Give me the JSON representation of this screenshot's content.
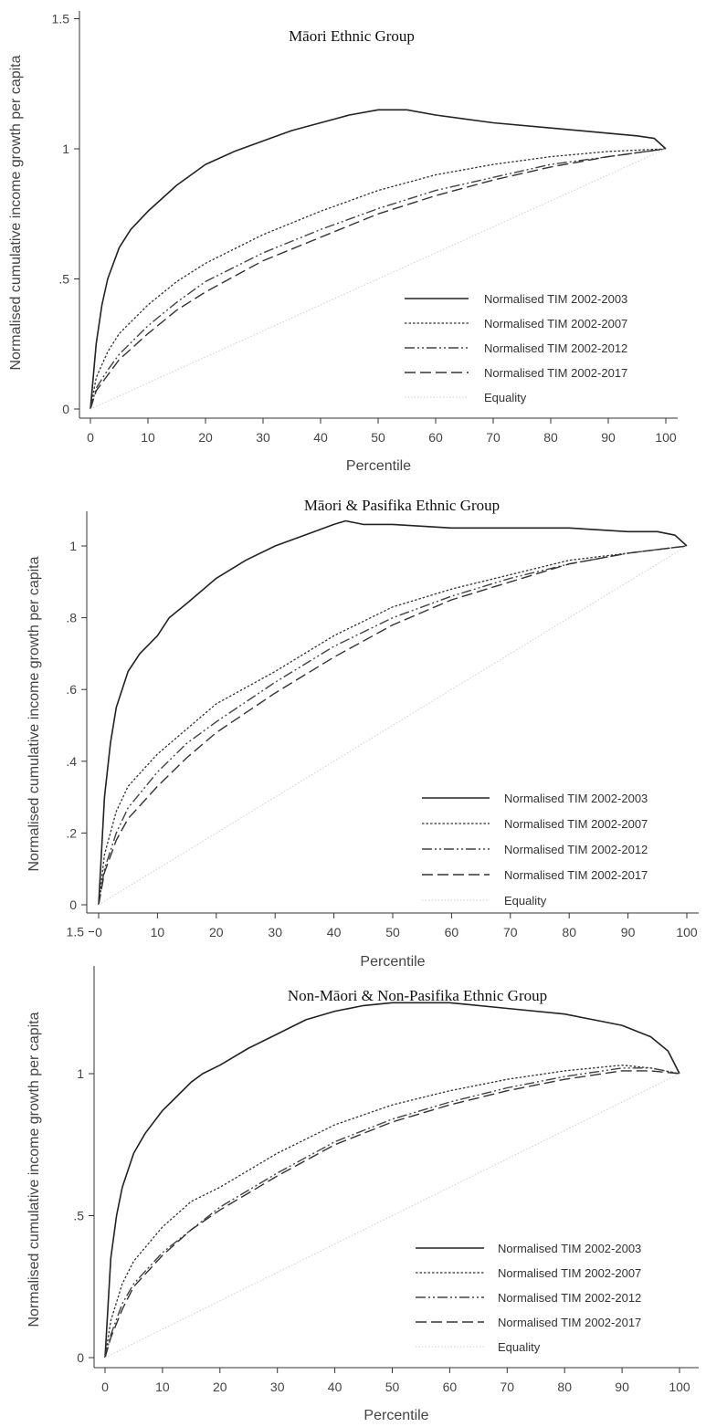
{
  "chart_data": [
    {
      "type": "line",
      "title": "Māori Ethnic Group",
      "xlabel": "Percentile",
      "ylabel": "Normalised cumulative income growth per capita",
      "xlim": [
        0,
        100
      ],
      "ylim": [
        0,
        1.5
      ],
      "xticks": [
        0,
        10,
        20,
        30,
        40,
        50,
        60,
        70,
        80,
        90,
        100
      ],
      "xtick_labels": [
        "0",
        "10",
        "20",
        "30",
        "40",
        "50",
        "60",
        "70",
        "80",
        "90",
        "100"
      ],
      "yticks": [
        0,
        0.5,
        1,
        1.5
      ],
      "ytick_labels": [
        "0",
        ".5",
        "1",
        "1.5"
      ],
      "legend_position": "bottom-right",
      "grid": false,
      "series": [
        {
          "name": "Normalised TIM 2002-2003",
          "style": "solid",
          "x": [
            0,
            1,
            2,
            3,
            5,
            7,
            10,
            12,
            15,
            20,
            25,
            30,
            35,
            40,
            45,
            50,
            55,
            60,
            70,
            80,
            90,
            95,
            98,
            100
          ],
          "y": [
            0,
            0.25,
            0.4,
            0.5,
            0.62,
            0.69,
            0.76,
            0.8,
            0.86,
            0.94,
            0.99,
            1.03,
            1.07,
            1.1,
            1.13,
            1.15,
            1.15,
            1.13,
            1.1,
            1.08,
            1.06,
            1.05,
            1.04,
            1.0
          ]
        },
        {
          "name": "Normalised TIM 2002-2007",
          "style": "dotted",
          "x": [
            0,
            1,
            3,
            5,
            10,
            15,
            20,
            30,
            40,
            50,
            60,
            70,
            80,
            90,
            100
          ],
          "y": [
            0,
            0.12,
            0.22,
            0.29,
            0.4,
            0.49,
            0.56,
            0.67,
            0.76,
            0.84,
            0.9,
            0.94,
            0.97,
            0.99,
            1.0
          ]
        },
        {
          "name": "Normalised TIM 2002-2012",
          "style": "dashdot",
          "x": [
            0,
            1,
            3,
            5,
            10,
            15,
            20,
            30,
            40,
            50,
            60,
            70,
            80,
            90,
            100
          ],
          "y": [
            0,
            0.08,
            0.15,
            0.21,
            0.32,
            0.41,
            0.49,
            0.6,
            0.69,
            0.77,
            0.84,
            0.89,
            0.94,
            0.97,
            1.0
          ]
        },
        {
          "name": "Normalised TIM 2002-2017",
          "style": "dashed",
          "x": [
            0,
            1,
            3,
            5,
            10,
            15,
            20,
            30,
            40,
            50,
            60,
            70,
            80,
            90,
            100
          ],
          "y": [
            0,
            0.07,
            0.13,
            0.19,
            0.29,
            0.38,
            0.45,
            0.57,
            0.66,
            0.75,
            0.82,
            0.88,
            0.93,
            0.97,
            1.0
          ]
        },
        {
          "name": "Equality",
          "style": "equality",
          "x": [
            0,
            100
          ],
          "y": [
            0,
            1.0
          ]
        }
      ]
    },
    {
      "type": "line",
      "title": "Māori & Pasifika Ethnic Group",
      "xlabel": "Percentile",
      "ylabel": "Normalised cumulative income growth per capita",
      "xlim": [
        0,
        100
      ],
      "ylim": [
        0,
        1.05
      ],
      "xticks": [
        0,
        10,
        20,
        30,
        40,
        50,
        60,
        70,
        80,
        90,
        100
      ],
      "xtick_labels": [
        "0",
        "10",
        "20",
        "30",
        "40",
        "50",
        "60",
        "70",
        "80",
        "90",
        "100"
      ],
      "yticks": [
        0,
        0.2,
        0.4,
        0.6,
        0.8,
        1
      ],
      "ytick_labels": [
        "0",
        ".2",
        ".4",
        ".6",
        ".8",
        "1"
      ],
      "legend_position": "bottom-right",
      "grid": false,
      "series": [
        {
          "name": "Normalised TIM 2002-2003",
          "style": "solid",
          "x": [
            0,
            1,
            2,
            3,
            5,
            7,
            10,
            12,
            15,
            20,
            25,
            30,
            35,
            40,
            42,
            45,
            50,
            60,
            70,
            80,
            90,
            95,
            98,
            100
          ],
          "y": [
            0,
            0.3,
            0.45,
            0.55,
            0.65,
            0.7,
            0.75,
            0.8,
            0.84,
            0.91,
            0.96,
            1.0,
            1.03,
            1.06,
            1.07,
            1.06,
            1.06,
            1.05,
            1.05,
            1.05,
            1.04,
            1.04,
            1.03,
            1.0
          ]
        },
        {
          "name": "Normalised TIM 2002-2007",
          "style": "dotted",
          "x": [
            0,
            1,
            3,
            5,
            10,
            15,
            20,
            30,
            40,
            50,
            60,
            70,
            80,
            90,
            100
          ],
          "y": [
            0,
            0.14,
            0.26,
            0.33,
            0.42,
            0.49,
            0.56,
            0.65,
            0.75,
            0.83,
            0.88,
            0.92,
            0.96,
            0.98,
            1.0
          ]
        },
        {
          "name": "Normalised TIM 2002-2012",
          "style": "dashdot",
          "x": [
            0,
            1,
            3,
            5,
            10,
            15,
            20,
            30,
            40,
            50,
            60,
            70,
            80,
            90,
            100
          ],
          "y": [
            0,
            0.1,
            0.2,
            0.27,
            0.37,
            0.45,
            0.51,
            0.62,
            0.72,
            0.8,
            0.86,
            0.91,
            0.95,
            0.98,
            1.0
          ]
        },
        {
          "name": "Normalised TIM 2002-2017",
          "style": "dashed",
          "x": [
            0,
            1,
            3,
            5,
            10,
            15,
            20,
            30,
            40,
            50,
            60,
            70,
            80,
            90,
            100
          ],
          "y": [
            0,
            0.09,
            0.18,
            0.24,
            0.33,
            0.41,
            0.48,
            0.59,
            0.69,
            0.78,
            0.85,
            0.9,
            0.95,
            0.98,
            1.0
          ]
        },
        {
          "name": "Equality",
          "style": "equality",
          "x": [
            0,
            100
          ],
          "y": [
            0,
            1.0
          ]
        }
      ]
    },
    {
      "type": "line",
      "title": "Non-Māori & Non-Pasifika Ethnic Group",
      "xlabel": "Percentile",
      "ylabel": "Normalised cumulative income growth per capita",
      "xlim": [
        0,
        100
      ],
      "ylim": [
        0,
        1.5
      ],
      "xticks": [
        0,
        10,
        20,
        30,
        40,
        50,
        60,
        70,
        80,
        90,
        100
      ],
      "xtick_labels": [
        "0",
        "10",
        "20",
        "30",
        "40",
        "50",
        "60",
        "70",
        "80",
        "90",
        "100"
      ],
      "yticks": [
        0,
        0.5,
        1,
        1.5
      ],
      "ytick_labels": [
        "0",
        ".5",
        "1",
        "1.5"
      ],
      "legend_position": "bottom-right",
      "grid": false,
      "series": [
        {
          "name": "Normalised TIM 2002-2003",
          "style": "solid",
          "x": [
            0,
            1,
            2,
            3,
            5,
            7,
            10,
            12,
            15,
            17,
            20,
            25,
            30,
            35,
            40,
            45,
            50,
            55,
            60,
            70,
            80,
            85,
            90,
            95,
            98,
            100
          ],
          "y": [
            0,
            0.35,
            0.5,
            0.6,
            0.72,
            0.79,
            0.87,
            0.91,
            0.97,
            1.0,
            1.03,
            1.09,
            1.14,
            1.19,
            1.22,
            1.24,
            1.25,
            1.25,
            1.25,
            1.23,
            1.21,
            1.19,
            1.17,
            1.13,
            1.08,
            1.0
          ]
        },
        {
          "name": "Normalised TIM 2002-2007",
          "style": "dotted",
          "x": [
            0,
            1,
            3,
            5,
            10,
            15,
            20,
            30,
            40,
            50,
            60,
            70,
            80,
            90,
            95,
            100
          ],
          "y": [
            0,
            0.13,
            0.26,
            0.34,
            0.46,
            0.55,
            0.6,
            0.72,
            0.82,
            0.89,
            0.94,
            0.98,
            1.01,
            1.03,
            1.02,
            1.0
          ]
        },
        {
          "name": "Normalised TIM 2002-2012",
          "style": "dashdot",
          "x": [
            0,
            1,
            3,
            5,
            10,
            15,
            20,
            30,
            40,
            50,
            60,
            70,
            80,
            90,
            95,
            100
          ],
          "y": [
            0,
            0.08,
            0.19,
            0.26,
            0.37,
            0.45,
            0.53,
            0.65,
            0.76,
            0.84,
            0.9,
            0.95,
            0.99,
            1.02,
            1.02,
            1.0
          ]
        },
        {
          "name": "Normalised TIM 2002-2017",
          "style": "dashed",
          "x": [
            0,
            1,
            3,
            5,
            10,
            15,
            20,
            30,
            40,
            50,
            60,
            70,
            80,
            90,
            95,
            100
          ],
          "y": [
            0,
            0.07,
            0.17,
            0.25,
            0.36,
            0.45,
            0.52,
            0.64,
            0.75,
            0.83,
            0.89,
            0.94,
            0.98,
            1.01,
            1.01,
            1.0
          ]
        },
        {
          "name": "Equality",
          "style": "equality",
          "x": [
            0,
            100
          ],
          "y": [
            0,
            1.0
          ]
        }
      ]
    }
  ]
}
